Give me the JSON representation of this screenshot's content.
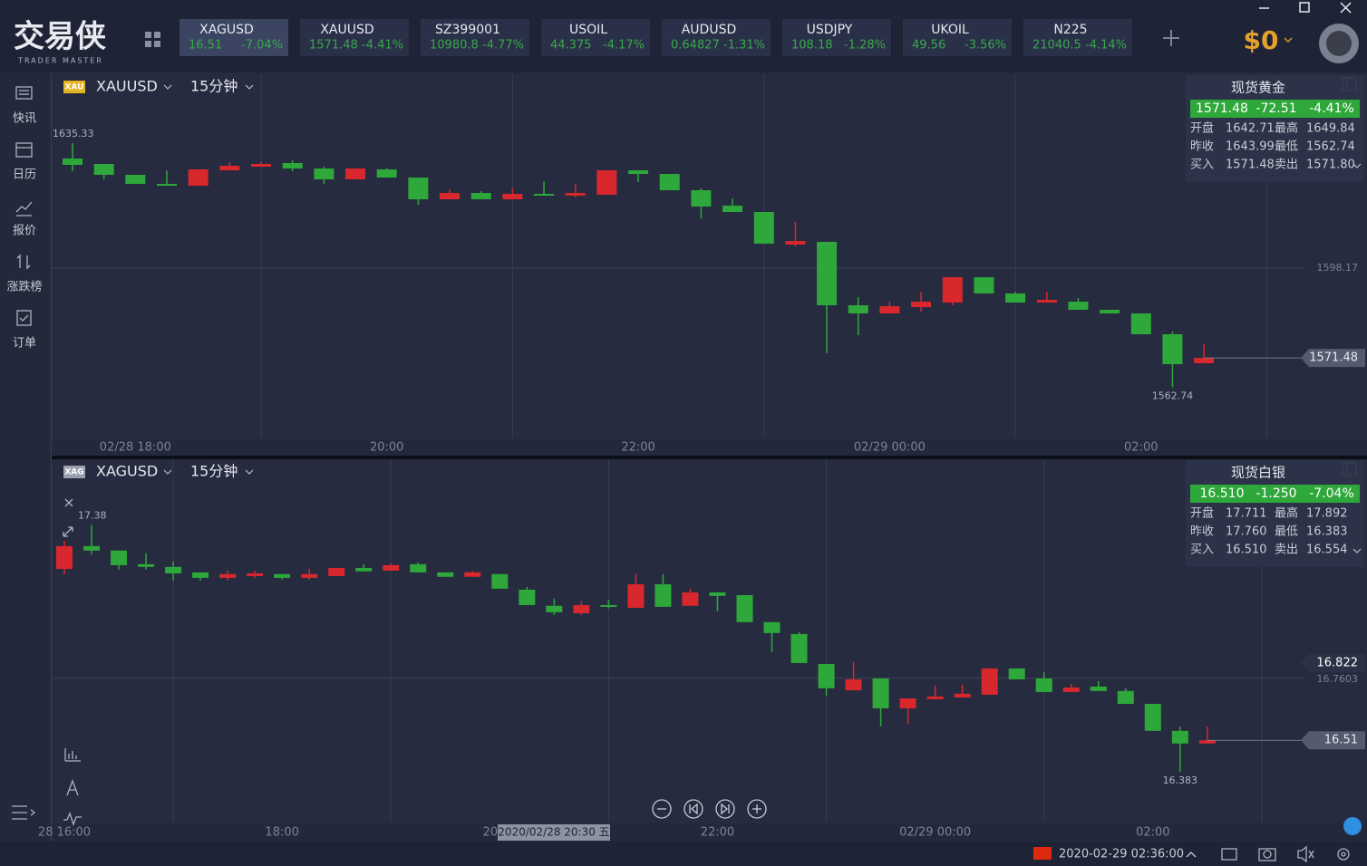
{
  "logo": {
    "title": "交易侠",
    "subtitle": "TRADER MASTER"
  },
  "tabs": [
    {
      "symbol": "XAGUSD",
      "price": "16.51",
      "change": "-7.04%"
    },
    {
      "symbol": "XAUUSD",
      "price": "1571.48",
      "change": "-4.41%"
    },
    {
      "symbol": "SZ399001",
      "price": "10980.8",
      "change": "-4.77%"
    },
    {
      "symbol": "USOIL",
      "price": "44.375",
      "change": "-4.17%"
    },
    {
      "symbol": "AUDUSD",
      "price": "0.64827",
      "change": "-1.31%"
    },
    {
      "symbol": "USDJPY",
      "price": "108.18",
      "change": "-1.28%"
    },
    {
      "symbol": "UKOIL",
      "price": "49.56",
      "change": "-3.56%"
    },
    {
      "symbol": "N225",
      "price": "21040.5",
      "change": "-4.14%"
    }
  ],
  "balance": "$0",
  "sidebar": [
    "快讯",
    "日历",
    "报价",
    "涨跌榜",
    "订单"
  ],
  "status_time": "2020-02-29 02:36:00",
  "chart_data": [
    {
      "type": "candlestick",
      "symbol_badge": "XAU",
      "symbol": "XAUUSD",
      "timeframe": "15分钟",
      "up_color": "#d9272e",
      "down_color": "#2ea83a",
      "grid": true,
      "ylim": [
        1547.54,
        1655.8
      ],
      "yticks": [
        1598.17
      ],
      "categories": [
        null,
        null,
        "02/28 18:00",
        null,
        null,
        null,
        null,
        null,
        null,
        null,
        "20:00",
        null,
        null,
        null,
        null,
        null,
        null,
        null,
        "22:00",
        null,
        null,
        null,
        null,
        null,
        null,
        null,
        "02/29 00:00",
        null,
        null,
        null,
        null,
        null,
        null,
        null,
        "02:00",
        null,
        null
      ],
      "ohlc": [
        [
          1630.75,
          1635.33,
          1626.98,
          1628.87
        ],
        [
          1629.14,
          1629.14,
          1624.56,
          1625.91
        ],
        [
          1625.91,
          1625.91,
          1623.21,
          1623.21
        ],
        [
          1623.21,
          1627.25,
          1622.67,
          1622.67
        ],
        [
          1622.67,
          1627.52,
          1622.67,
          1627.52
        ],
        [
          1627.25,
          1629.68,
          1627.25,
          1628.6
        ],
        [
          1628.33,
          1629.68,
          1628.33,
          1629.14
        ],
        [
          1629.41,
          1630.21,
          1626.98,
          1627.79
        ],
        [
          1627.79,
          1628.33,
          1623.21,
          1624.56
        ],
        [
          1624.56,
          1627.79,
          1624.56,
          1627.79
        ],
        [
          1627.52,
          1627.79,
          1625.1,
          1625.1
        ],
        [
          1625.1,
          1625.1,
          1617.02,
          1618.63
        ],
        [
          1618.63,
          1621.6,
          1618.63,
          1620.52
        ],
        [
          1620.52,
          1621.06,
          1618.63,
          1618.63
        ],
        [
          1618.63,
          1621.87,
          1618.63,
          1620.25
        ],
        [
          1620.25,
          1624.02,
          1619.71,
          1619.71
        ],
        [
          1619.71,
          1623.21,
          1619.17,
          1620.52
        ],
        [
          1619.98,
          1627.25,
          1619.98,
          1627.25
        ],
        [
          1627.25,
          1627.25,
          1623.75,
          1626.17
        ],
        [
          1626.17,
          1626.17,
          1621.33,
          1621.33
        ],
        [
          1621.33,
          1621.87,
          1612.98,
          1616.48
        ],
        [
          1616.75,
          1618.9,
          1614.86,
          1614.86
        ],
        [
          1614.86,
          1614.86,
          1605.44,
          1605.44
        ],
        [
          1605.17,
          1611.9,
          1604.63,
          1606.25
        ],
        [
          1605.98,
          1605.98,
          1572.85,
          1587.13
        ],
        [
          1587.13,
          1589.55,
          1578.24,
          1584.7
        ],
        [
          1584.7,
          1588.2,
          1584.7,
          1586.86
        ],
        [
          1586.59,
          1591.17,
          1585.24,
          1588.2
        ],
        [
          1587.93,
          1595.47,
          1587.13,
          1595.47
        ],
        [
          1595.47,
          1595.47,
          1590.63,
          1590.63
        ],
        [
          1590.63,
          1591.17,
          1587.93,
          1587.93
        ],
        [
          1587.93,
          1591.17,
          1587.93,
          1588.74
        ],
        [
          1588.2,
          1589.28,
          1585.78,
          1585.78
        ],
        [
          1585.78,
          1585.78,
          1584.7,
          1584.7
        ],
        [
          1584.7,
          1584.7,
          1578.51,
          1578.51
        ],
        [
          1578.51,
          1579.32,
          1562.74,
          1569.62
        ],
        [
          1569.89,
          1575.55,
          1569.89,
          1571.48
        ]
      ],
      "last_price": 1571.48,
      "high_label": 1635.33,
      "low_label": 1562.74,
      "quote": {
        "name": "现货黄金",
        "price": "1571.48",
        "change": "-72.51",
        "percent": "-4.41%",
        "rows": [
          [
            "开盘",
            "1642.71",
            "最高",
            "1649.84"
          ],
          [
            "昨收",
            "1643.99",
            "最低",
            "1562.74"
          ],
          [
            "买入",
            "1571.48",
            "卖出",
            "1571.80"
          ]
        ]
      }
    },
    {
      "type": "candlestick",
      "symbol_badge": "XAG",
      "symbol": "XAGUSD",
      "timeframe": "15分钟",
      "up_color": "#d9272e",
      "down_color": "#2ea83a",
      "grid": true,
      "ylim": [
        16.178,
        17.641
      ],
      "yticks": [
        16.7603
      ],
      "categories": [
        "28 16:00",
        null,
        null,
        null,
        null,
        null,
        null,
        null,
        "18:00",
        null,
        null,
        null,
        null,
        null,
        null,
        null,
        "20:00",
        null,
        null,
        null,
        null,
        null,
        null,
        null,
        "22:00",
        null,
        null,
        null,
        null,
        null,
        null,
        null,
        "02/29 00:00",
        null,
        null,
        null,
        null,
        null,
        null,
        null,
        "02:00",
        null,
        null
      ],
      "ohlc": [
        [
          17.202,
          17.316,
          17.181,
          17.294
        ],
        [
          17.294,
          17.38,
          17.261,
          17.276
        ],
        [
          17.276,
          17.276,
          17.199,
          17.217
        ],
        [
          17.221,
          17.265,
          17.199,
          17.21
        ],
        [
          17.21,
          17.232,
          17.155,
          17.184
        ],
        [
          17.188,
          17.188,
          17.155,
          17.166
        ],
        [
          17.166,
          17.195,
          17.155,
          17.181
        ],
        [
          17.173,
          17.195,
          17.166,
          17.184
        ],
        [
          17.181,
          17.181,
          17.159,
          17.166
        ],
        [
          17.166,
          17.202,
          17.159,
          17.181
        ],
        [
          17.173,
          17.206,
          17.173,
          17.206
        ],
        [
          17.206,
          17.221,
          17.192,
          17.192
        ],
        [
          17.195,
          17.224,
          17.195,
          17.217
        ],
        [
          17.221,
          17.228,
          17.188,
          17.188
        ],
        [
          17.188,
          17.188,
          17.17,
          17.17
        ],
        [
          17.17,
          17.195,
          17.17,
          17.188
        ],
        [
          17.181,
          17.181,
          17.122,
          17.122
        ],
        [
          17.118,
          17.129,
          17.056,
          17.056
        ],
        [
          17.053,
          17.082,
          17.016,
          17.027
        ],
        [
          17.023,
          17.071,
          17.016,
          17.056
        ],
        [
          17.056,
          17.078,
          17.042,
          17.049
        ],
        [
          17.045,
          17.181,
          17.045,
          17.14
        ],
        [
          17.14,
          17.181,
          17.049,
          17.049
        ],
        [
          17.053,
          17.122,
          17.053,
          17.107
        ],
        [
          17.107,
          17.107,
          17.031,
          17.093
        ],
        [
          17.096,
          17.096,
          16.987,
          16.987
        ],
        [
          16.987,
          16.987,
          16.866,
          16.943
        ],
        [
          16.939,
          16.946,
          16.822,
          16.822
        ],
        [
          16.818,
          16.818,
          16.69,
          16.72
        ],
        [
          16.712,
          16.826,
          16.712,
          16.756
        ],
        [
          16.76,
          16.76,
          16.566,
          16.639
        ],
        [
          16.639,
          16.679,
          16.577,
          16.679
        ],
        [
          16.676,
          16.731,
          16.676,
          16.687
        ],
        [
          16.683,
          16.734,
          16.683,
          16.698
        ],
        [
          16.694,
          16.8,
          16.694,
          16.8
        ],
        [
          16.8,
          16.8,
          16.756,
          16.756
        ],
        [
          16.76,
          16.786,
          16.705,
          16.705
        ],
        [
          16.705,
          16.738,
          16.705,
          16.723
        ],
        [
          16.727,
          16.749,
          16.709,
          16.709
        ],
        [
          16.709,
          16.72,
          16.657,
          16.657
        ],
        [
          16.657,
          16.657,
          16.548,
          16.548
        ],
        [
          16.548,
          16.566,
          16.383,
          16.497
        ],
        [
          16.497,
          16.566,
          16.497,
          16.51
        ]
      ],
      "last_price": 16.51,
      "high_label": 17.38,
      "low_label": 16.383,
      "cursor_price": 16.822,
      "time_tooltip": "2020/02/28 20:30 五",
      "quote": {
        "name": "现货白银",
        "price": "16.510",
        "change": "-1.250",
        "percent": "-7.04%",
        "rows": [
          [
            "开盘",
            "17.711",
            "最高",
            "17.892"
          ],
          [
            "昨收",
            "17.760",
            "最低",
            "16.383"
          ],
          [
            "买入",
            "16.510",
            "卖出",
            "16.554"
          ]
        ]
      }
    }
  ]
}
